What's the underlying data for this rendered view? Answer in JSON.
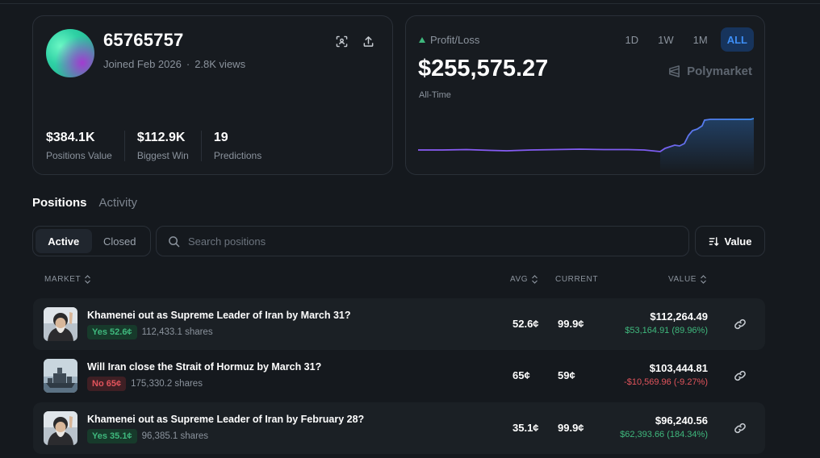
{
  "profile": {
    "username": "65765757",
    "joined": "Joined Feb 2026",
    "views": "2.8K views",
    "stats": [
      {
        "value": "$384.1K",
        "label": "Positions Value"
      },
      {
        "value": "$112.9K",
        "label": "Biggest Win"
      },
      {
        "value": "19",
        "label": "Predictions"
      }
    ]
  },
  "pnl": {
    "label": "Profit/Loss",
    "value": "$255,575.27",
    "period": "All-Time",
    "ranges": [
      "1D",
      "1W",
      "1M",
      "ALL"
    ],
    "active_range": "ALL",
    "brand": "Polymarket"
  },
  "tabs": [
    "Positions",
    "Activity"
  ],
  "filters": {
    "active": "Active",
    "closed": "Closed"
  },
  "search": {
    "placeholder": "Search positions"
  },
  "sort": {
    "label": "Value"
  },
  "columns": {
    "market": "MARKET",
    "avg": "AVG",
    "current": "CURRENT",
    "value": "VALUE"
  },
  "positions": [
    {
      "title": "Khamenei out as Supreme Leader of Iran by March 31?",
      "outcome": "Yes 52.6¢",
      "shares": "112,433.1 shares",
      "avg": "52.6¢",
      "current": "99.9¢",
      "value": "$112,264.49",
      "pnl": "$53,164.91 (89.96%)",
      "thumb": "khamenei-portrait-icon"
    },
    {
      "title": "Will Iran close the Strait of Hormuz by March 31?",
      "outcome": "No 65¢",
      "shares": "175,330.2 shares",
      "avg": "65¢",
      "current": "59¢",
      "value": "$103,444.81",
      "pnl": "-$10,569.96 (-9.27%)",
      "thumb": "ship-icon"
    },
    {
      "title": "Khamenei out as Supreme Leader of Iran by February 28?",
      "outcome": "Yes 35.1¢",
      "shares": "96,385.1 shares",
      "avg": "35.1¢",
      "current": "99.9¢",
      "value": "$96,240.56",
      "pnl": "$62,393.66 (184.34%)",
      "thumb": "khamenei-portrait-icon"
    }
  ],
  "colors": {
    "background": "#15191e",
    "accent_blue": "#3d8ef5",
    "positive": "#3fb87d",
    "negative": "#e2545c",
    "line_purple": "#8b5cf6"
  }
}
